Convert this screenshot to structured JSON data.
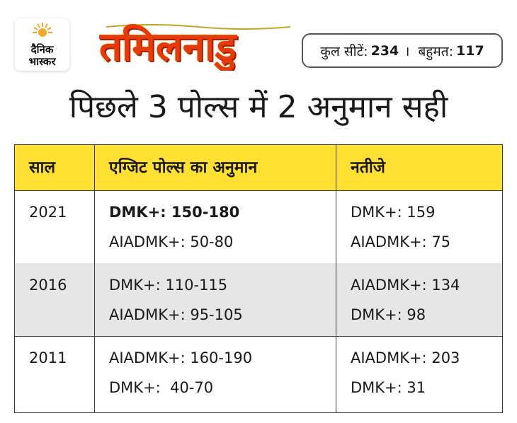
{
  "brand": {
    "line1": "दैनिक",
    "line2": "भास्कर"
  },
  "state_title": "तमिलनाडु",
  "seats": {
    "total_label": "कुल सीटें:",
    "total_value": "234",
    "separator": "।",
    "majority_label": "बहुमत:",
    "majority_value": "117"
  },
  "headline": "पिछले 3 पोल्स में 2 अनुमान सही",
  "table": {
    "headers": [
      "साल",
      "एग्जिट पोल्स का अनुमान",
      "नतीजे"
    ],
    "rows": [
      {
        "year": "2021",
        "poll": [
          "DMK+: 150-180",
          "AIADMK+: 50-80"
        ],
        "result": [
          "DMK+: 159",
          "AIADMK+: 75"
        ]
      },
      {
        "year": "2016",
        "poll": [
          "DMK+: 110-115",
          "AIADMK+: 95-105"
        ],
        "result": [
          "AIADMK+: 134",
          "DMK+: 98"
        ]
      },
      {
        "year": "2011",
        "poll": [
          "AIADMK+: 160-190",
          "DMK+:  40-70"
        ],
        "result": [
          "AIADMK+: 203",
          "DMK+: 31"
        ]
      }
    ]
  },
  "colors": {
    "header_bg": "#ffe033",
    "title_orange": "#e53a0c",
    "alt_row": "#e6e6e6",
    "sun": "#f7a823"
  }
}
